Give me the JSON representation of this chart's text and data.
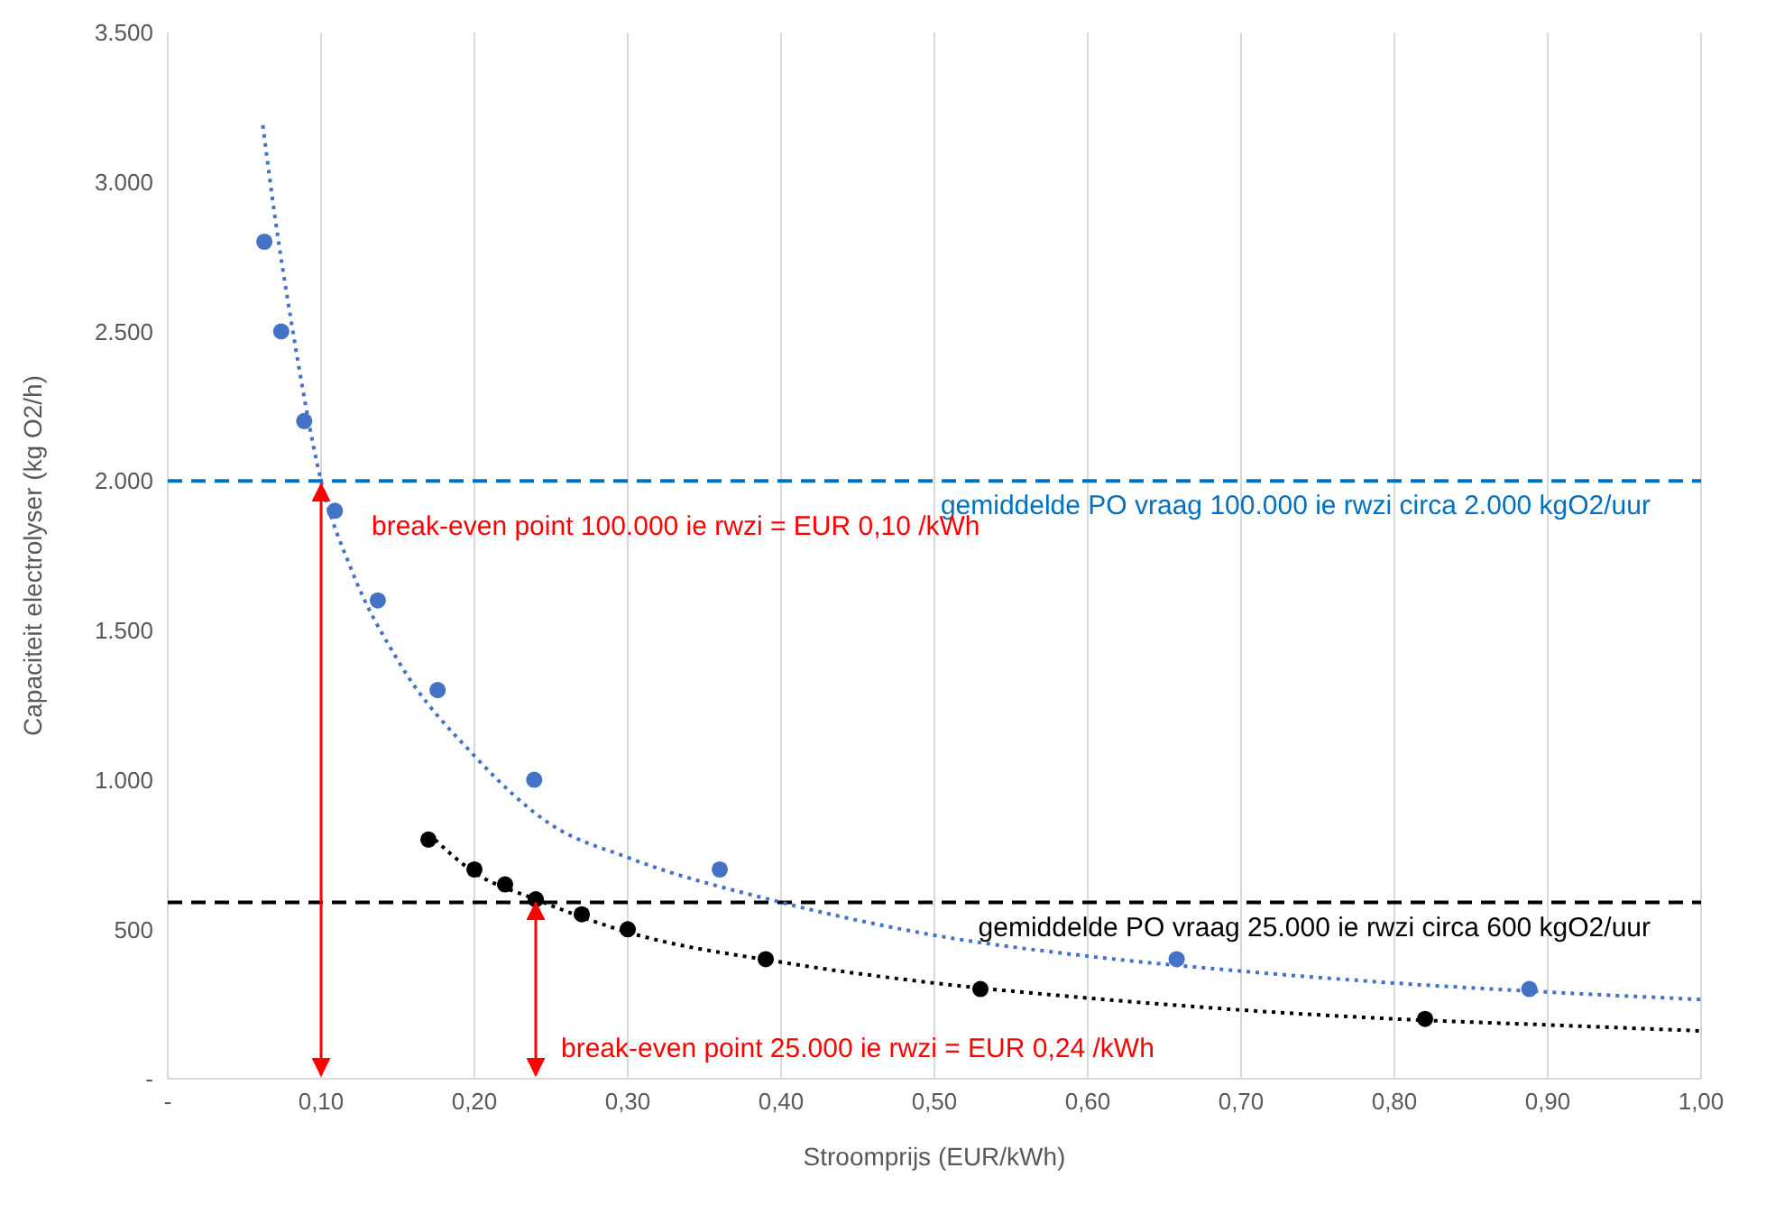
{
  "chart_data": {
    "type": "scatter",
    "xlabel": "Stroomprijs (EUR/kWh)",
    "ylabel": "Capaciteit electrolyser (kg O2/h)",
    "xlim": [
      0,
      1
    ],
    "xticks": [
      {
        "value": 0,
        "label": "-"
      },
      {
        "value": 0.1,
        "label": "0,10"
      },
      {
        "value": 0.2,
        "label": "0,20"
      },
      {
        "value": 0.3,
        "label": "0,30"
      },
      {
        "value": 0.4,
        "label": "0,40"
      },
      {
        "value": 0.5,
        "label": "0,50"
      },
      {
        "value": 0.6,
        "label": "0,60"
      },
      {
        "value": 0.7,
        "label": "0,70"
      },
      {
        "value": 0.8,
        "label": "0,80"
      },
      {
        "value": 0.9,
        "label": "0,90"
      },
      {
        "value": 1,
        "label": "1,00"
      }
    ],
    "ylim": [
      0,
      3500
    ],
    "yticks": [
      {
        "value": 0,
        "label": "-"
      },
      500,
      {
        "value": 1000,
        "label": "1.000"
      },
      {
        "value": 1500,
        "label": "1.500"
      },
      {
        "value": 2000,
        "label": "2.000"
      },
      {
        "value": 2500,
        "label": "2.500"
      },
      {
        "value": 3000,
        "label": "3.000"
      },
      {
        "value": 3500,
        "label": "3.500"
      }
    ],
    "grid": "x",
    "series": [
      {
        "type": "line",
        "color": "#4472c4",
        "line_style": "dotted",
        "marker": "none",
        "x": [
          0.062,
          0.07,
          0.08,
          0.1,
          0.12,
          0.15,
          0.2,
          0.25,
          0.3,
          0.4,
          0.5,
          0.6,
          0.7,
          0.8,
          0.9,
          1.0
        ],
        "values": [
          3190,
          2880,
          2550,
          2000,
          1700,
          1400,
          1080,
          850,
          740,
          590,
          480,
          410,
          360,
          320,
          290,
          265
        ]
      },
      {
        "color": "#4472c4",
        "marker": "circle",
        "x": [
          0.063,
          0.074,
          0.089,
          0.109,
          0.137,
          0.176,
          0.239,
          0.36,
          0.658,
          0.888
        ],
        "values": [
          2800,
          2500,
          2200,
          1900,
          1600,
          1300,
          1000,
          700,
          400,
          300
        ]
      },
      {
        "type": "line",
        "color": "#000000",
        "line_style": "dotted",
        "marker": "none",
        "x": [
          0.17,
          0.2,
          0.24,
          0.3,
          0.4,
          0.5,
          0.6,
          0.7,
          0.8,
          0.9,
          1.0
        ],
        "values": [
          820,
          690,
          600,
          490,
          390,
          320,
          270,
          230,
          200,
          180,
          160
        ]
      },
      {
        "color": "#000000",
        "marker": "circle",
        "x": [
          0.17,
          0.2,
          0.22,
          0.24,
          0.27,
          0.3,
          0.39,
          0.53,
          0.82
        ],
        "values": [
          800,
          700,
          650,
          600,
          550,
          500,
          400,
          300,
          200
        ]
      }
    ],
    "ref_lines": [
      {
        "axis": "y",
        "value": 2000,
        "label": "gemiddelde  PO vraag 100.000 ie rwzi circa 2.000 kgO2/uur",
        "color": "#0070c0",
        "line_style": "dashed"
      },
      {
        "axis": "y",
        "value": 590,
        "label": "gemiddelde  PO vraag 25.000 ie rwzi circa 600 kgO2/uur",
        "color": "#000000",
        "line_style": "dashed"
      }
    ],
    "annotations": [
      {
        "text": "break-even point 100.000 ie rwzi = EUR 0,10 /kWh",
        "x": 0.1,
        "y": 2000
      },
      {
        "text": "break-even point 25.000 ie rwzi = EUR 0,24 /kWh",
        "x": 0.24,
        "y": 600
      }
    ]
  }
}
